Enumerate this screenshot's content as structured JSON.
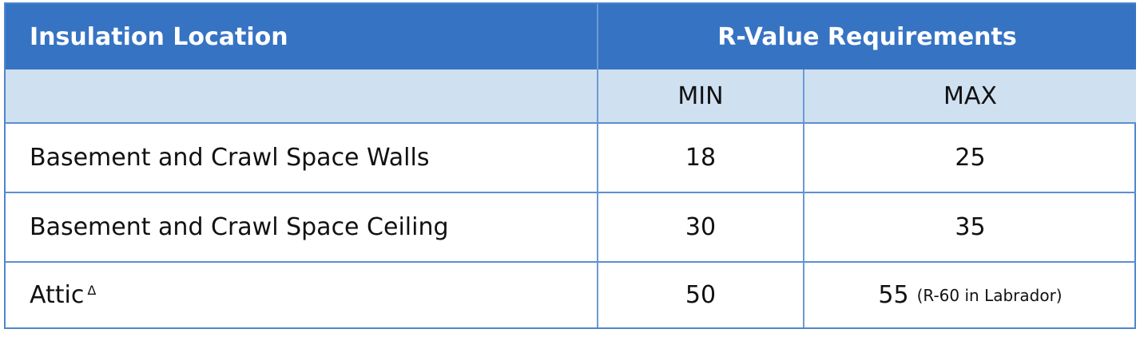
{
  "table": {
    "header": [
      "Insulation Location",
      "R-Value Requirements"
    ],
    "subheader": [
      "MIN",
      "MAX"
    ],
    "rows": [
      {
        "location": "Basement and Crawl Space Walls",
        "min": 18,
        "max": 25
      },
      {
        "location": "Basement and Crawl Space Ceiling",
        "min": 30,
        "max": 35
      },
      {
        "location": "Attic",
        "marker": "Δ",
        "min": 50,
        "max": 55,
        "max_note": "(R-60 in Labrador)"
      }
    ]
  }
}
